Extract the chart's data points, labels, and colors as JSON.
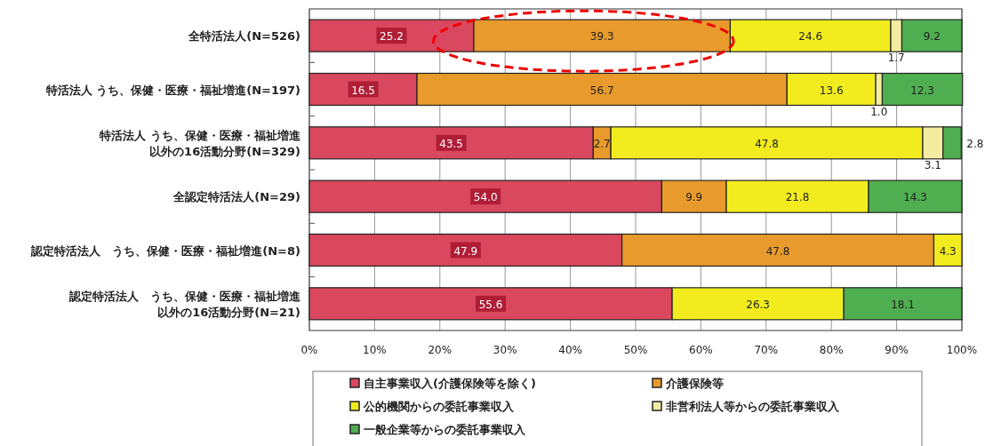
{
  "chart_data": {
    "type": "bar",
    "orientation": "horizontal",
    "stacked": true,
    "grid": "x",
    "legend": "bottom",
    "categories": [
      "全特活法人(N=526)",
      "特活法人 うち、保健・医療・福祉増進(N=197)",
      "特活法人 うち、保健・医療・福祉増進以外の16活動分野(N=329)",
      "全認定特活法人(N=29)",
      "認定特活法人　うち、保健・医療・福祉増進(N=8)",
      "認定特活法人　うち、保健・医療・福祉増進以外の16活動分野(N=21)"
    ],
    "series": [
      {
        "name": "自主事業収入(介護保険等を除く)",
        "color": "#d9485e",
        "values": [
          25.2,
          16.5,
          43.5,
          54.0,
          47.9,
          55.6
        ],
        "value_labels": [
          "25.2",
          "16.5",
          "43.5",
          "54.0",
          "47.9",
          "55.6"
        ]
      },
      {
        "name": "介護保険等",
        "color": "#e89a2c",
        "values": [
          39.3,
          56.7,
          2.7,
          9.9,
          47.8,
          null
        ],
        "value_labels": [
          "39.3",
          "56.7",
          "2.7",
          "9.9",
          "47.8",
          null
        ]
      },
      {
        "name": "公的機関からの委託事業収入",
        "color": "#f2ec1e",
        "values": [
          24.6,
          13.6,
          47.8,
          21.8,
          4.3,
          26.3
        ],
        "value_labels": [
          "24.6",
          "13.6",
          "47.8",
          "21.8",
          "4.3",
          "26.3"
        ]
      },
      {
        "name": "非営利法人等からの委託事業収入",
        "color": "#f4eca0",
        "values": [
          1.7,
          1.0,
          3.1,
          null,
          null,
          null
        ],
        "value_labels": [
          "1.7",
          "1.0",
          "3.1",
          null,
          null,
          null
        ]
      },
      {
        "name": "一般企業等からの委託事業収入",
        "color": "#4fae4f",
        "values": [
          9.2,
          12.3,
          2.8,
          14.3,
          null,
          18.1
        ],
        "value_labels": [
          "9.2",
          "12.3",
          "2.8",
          "14.3",
          null,
          "18.1"
        ]
      }
    ],
    "xlim": [
      0,
      100
    ],
    "xticks": [
      {
        "value": 0,
        "label": "0%"
      },
      {
        "value": 10,
        "label": "10%"
      },
      {
        "value": 20,
        "label": "20%"
      },
      {
        "value": 30,
        "label": "30%"
      },
      {
        "value": 40,
        "label": "40%"
      },
      {
        "value": 50,
        "label": "50%"
      },
      {
        "value": 60,
        "label": "60%"
      },
      {
        "value": 70,
        "label": "70%"
      },
      {
        "value": 80,
        "label": "80%"
      },
      {
        "value": 90,
        "label": "90%"
      },
      {
        "value": 100,
        "label": "100%"
      }
    ]
  }
}
